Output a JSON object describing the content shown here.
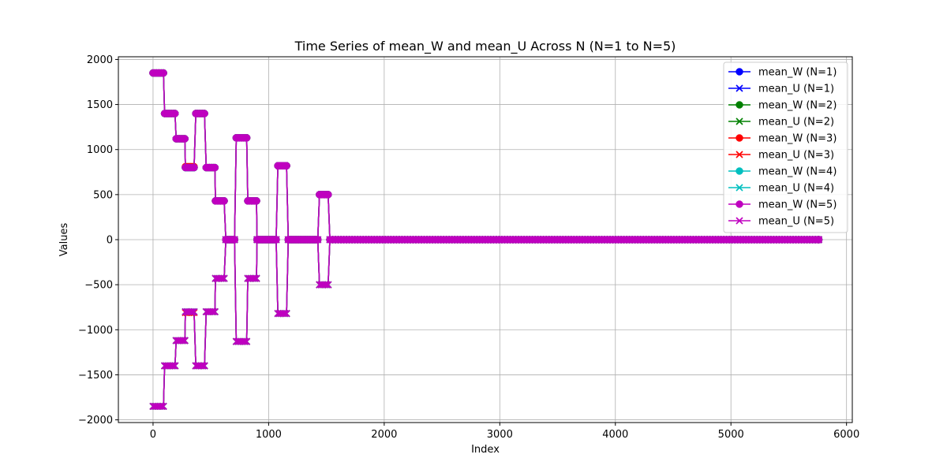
{
  "chart_data": {
    "type": "line",
    "title": "Time Series of mean_W and mean_U Across N (N=1 to N=5)",
    "xlabel": "Index",
    "ylabel": "Values",
    "xlim": [
      -300,
      6050
    ],
    "ylim": [
      -2030,
      2030
    ],
    "xticks": [
      0,
      1000,
      2000,
      3000,
      4000,
      5000,
      6000
    ],
    "yticks": [
      -2000,
      -1500,
      -1000,
      -500,
      0,
      500,
      1000,
      1500,
      2000
    ],
    "xtick_labels": [
      "0",
      "1000",
      "2000",
      "3000",
      "4000",
      "5000",
      "6000"
    ],
    "ytick_labels": [
      "−2000",
      "−1500",
      "−1000",
      "−500",
      "0",
      "500",
      "1000",
      "1500",
      "2000"
    ],
    "grid": true,
    "legend_position": "top-right",
    "steps": [
      {
        "x_start": 0,
        "x_end": 100,
        "W": 1850,
        "U": -1850
      },
      {
        "x_start": 100,
        "x_end": 200,
        "W": 1400,
        "U": -1400
      },
      {
        "x_start": 200,
        "x_end": 280,
        "W": 1120,
        "U": -1120
      },
      {
        "x_start": 280,
        "x_end": 370,
        "W": 800,
        "U": -800
      },
      {
        "x_start": 370,
        "x_end": 460,
        "W": 1400,
        "U": -1400
      },
      {
        "x_start": 460,
        "x_end": 540,
        "W": 800,
        "U": -800
      },
      {
        "x_start": 540,
        "x_end": 630,
        "W": 430,
        "U": -430
      },
      {
        "x_start": 630,
        "x_end": 720,
        "W": 0,
        "U": 0
      },
      {
        "x_start": 720,
        "x_end": 820,
        "W": 1130,
        "U": -1130
      },
      {
        "x_start": 820,
        "x_end": 900,
        "W": 430,
        "U": -430
      },
      {
        "x_start": 900,
        "x_end": 1080,
        "W": 0,
        "U": 0
      },
      {
        "x_start": 1080,
        "x_end": 1170,
        "W": 820,
        "U": -820
      },
      {
        "x_start": 1170,
        "x_end": 1440,
        "W": 0,
        "U": 0
      },
      {
        "x_start": 1440,
        "x_end": 1530,
        "W": 500,
        "U": -500
      },
      {
        "x_start": 1530,
        "x_end": 5760,
        "W": 0,
        "U": 0
      }
    ],
    "series": [
      {
        "name": "mean_W (N=1)",
        "color": "#0000ff",
        "marker": "circle",
        "var": "W",
        "deviation": null
      },
      {
        "name": "mean_U (N=1)",
        "color": "#0000ff",
        "marker": "x",
        "var": "U",
        "deviation": null
      },
      {
        "name": "mean_W (N=2)",
        "color": "#008000",
        "marker": "circle",
        "var": "W",
        "deviation": null
      },
      {
        "name": "mean_U (N=2)",
        "color": "#008000",
        "marker": "x",
        "var": "U",
        "deviation": null
      },
      {
        "name": "mean_W (N=3)",
        "color": "#ff0000",
        "marker": "circle",
        "var": "W",
        "deviation": {
          "x_start": 280,
          "x_end": 370,
          "value": 810
        }
      },
      {
        "name": "mean_U (N=3)",
        "color": "#ff0000",
        "marker": "x",
        "var": "U",
        "deviation": {
          "x_start": 280,
          "x_end": 370,
          "value": -810
        }
      },
      {
        "name": "mean_W (N=4)",
        "color": "#00bfbf",
        "marker": "circle",
        "var": "W",
        "deviation": null
      },
      {
        "name": "mean_U (N=4)",
        "color": "#00bfbf",
        "marker": "x",
        "var": "U",
        "deviation": null
      },
      {
        "name": "mean_W (N=5)",
        "color": "#bf00bf",
        "marker": "circle",
        "var": "W",
        "deviation": null
      },
      {
        "name": "mean_U (N=5)",
        "color": "#bf00bf",
        "marker": "x",
        "var": "U",
        "deviation": null
      }
    ]
  }
}
